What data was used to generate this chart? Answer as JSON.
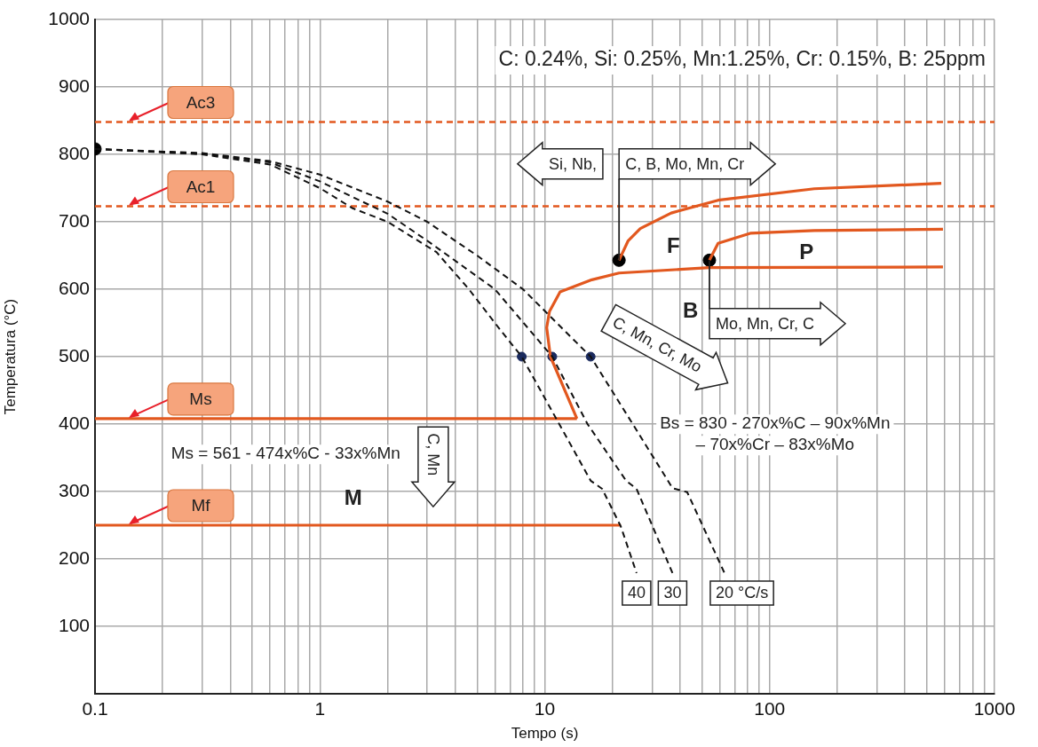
{
  "chart_data": {
    "type": "line",
    "xlabel": "Tempo (s)",
    "ylabel": "Temperatura (°C)",
    "log": "x",
    "grid": true,
    "legend": false,
    "xlim": [
      0.1,
      1000
    ],
    "ylim": [
      0,
      1000
    ],
    "xticks": [
      0.1,
      {
        "value": 0.2,
        "label": null
      },
      {
        "value": 0.3,
        "label": null
      },
      {
        "value": 0.4,
        "label": null
      },
      {
        "value": 0.5,
        "label": null
      },
      {
        "value": 0.6,
        "label": null
      },
      {
        "value": 0.7,
        "label": null
      },
      {
        "value": 0.8,
        "label": null
      },
      {
        "value": 0.9,
        "label": null
      },
      1,
      {
        "value": 2,
        "label": null
      },
      {
        "value": 3,
        "label": null
      },
      {
        "value": 4,
        "label": null
      },
      {
        "value": 5,
        "label": null
      },
      {
        "value": 6,
        "label": null
      },
      {
        "value": 7,
        "label": null
      },
      {
        "value": 8,
        "label": null
      },
      {
        "value": 9,
        "label": null
      },
      10,
      {
        "value": 20,
        "label": null
      },
      {
        "value": 30,
        "label": null
      },
      {
        "value": 40,
        "label": null
      },
      {
        "value": 50,
        "label": null
      },
      {
        "value": 60,
        "label": null
      },
      {
        "value": 70,
        "label": null
      },
      {
        "value": 80,
        "label": null
      },
      {
        "value": 90,
        "label": null
      },
      100,
      {
        "value": 200,
        "label": null
      },
      {
        "value": 300,
        "label": null
      },
      {
        "value": 400,
        "label": null
      },
      {
        "value": 500,
        "label": null
      },
      {
        "value": 600,
        "label": null
      },
      {
        "value": 700,
        "label": null
      },
      {
        "value": 800,
        "label": null
      },
      {
        "value": 900,
        "label": null
      },
      1000
    ],
    "yticks": [
      100,
      200,
      300,
      400,
      500,
      600,
      700,
      800,
      900,
      1000
    ],
    "series": [
      {
        "name": "40",
        "line_style": "dashed",
        "color": "#111111",
        "x": [
          0.1,
          0.3,
          0.6,
          1,
          1.4,
          2,
          3.3,
          4.6,
          6.4,
          7.9,
          11.6,
          16,
          18,
          21.8,
          25.6
        ],
        "values": [
          808,
          800,
          785,
          750,
          720,
          700,
          655,
          600,
          538,
          500,
          400,
          316,
          304,
          248,
          179
        ]
      },
      {
        "name": "30",
        "line_style": "dashed",
        "color": "#111111",
        "x": [
          0.1,
          0.3,
          0.6,
          1,
          2,
          3,
          6,
          10.8,
          15.5,
          23,
          25.6,
          37
        ],
        "values": [
          808,
          801,
          788,
          760,
          712,
          672,
          600,
          500,
          400,
          316,
          304,
          179
        ]
      },
      {
        "name": "20 °C/s",
        "line_style": "dashed",
        "color": "#111111",
        "x": [
          0.1,
          0.3,
          0.6,
          1,
          2,
          3,
          5,
          8,
          16,
          24,
          37,
          43,
          63
        ],
        "values": [
          808,
          802,
          790,
          770,
          730,
          700,
          650,
          600,
          500,
          406,
          305,
          299,
          179
        ]
      },
      {
        "line_style": "solid",
        "color": "#e2581f",
        "x": [
          21.4,
          23.5,
          26.6,
          36.5,
          59,
          158,
          580
        ],
        "values": [
          643,
          672,
          690,
          713,
          732,
          749,
          757
        ]
      },
      {
        "line_style": "solid",
        "color": "#e2581f",
        "x": [
          13.9,
          10.6,
          10.2,
          10.5,
          11.7,
          16.2,
          21.4,
          54,
          590
        ],
        "values": [
          408,
          500,
          543,
          567,
          596,
          614,
          624,
          632,
          633
        ]
      },
      {
        "line_style": "solid",
        "color": "#e2581f",
        "x": [
          54,
          59,
          82,
          158,
          590
        ],
        "values": [
          643,
          668,
          683,
          687,
          689
        ]
      },
      {
        "name": "Ms",
        "line_style": "solid",
        "color": "#e2581f",
        "x": [
          0.1,
          13.9
        ],
        "values": [
          408,
          408
        ]
      },
      {
        "name": "Mf",
        "line_style": "solid",
        "color": "#e2581f",
        "x": [
          0.1,
          21.8
        ],
        "values": [
          250,
          250
        ]
      },
      {
        "type": "scatter",
        "marker": "circle",
        "color": "#1a2a5e",
        "x": [
          7.9,
          10.8,
          16
        ],
        "values": [
          500,
          500,
          500
        ]
      },
      {
        "type": "scatter",
        "marker": "circle",
        "color": "#000000",
        "x": [
          0.1,
          21.4,
          54
        ],
        "values": [
          808,
          643,
          643
        ]
      }
    ],
    "ref_lines": [
      {
        "axis": "y",
        "value": 848,
        "label": "Ac3",
        "color": "#e2581f",
        "line_style": "dashed"
      },
      {
        "axis": "y",
        "value": 723,
        "label": "Ac1",
        "color": "#e2581f",
        "line_style": "dashed"
      }
    ],
    "annotations": [
      "C: 0.24%, Si: 0.25%, Mn:1.25%, Cr: 0.15%, B: 25ppm",
      "Si, Nb,",
      {
        "text": "C, B, Mo, Mn, Cr",
        "x": 21.4,
        "y": 643
      },
      {
        "text": "Mo, Mn, Cr, C",
        "x": 54,
        "y": 643
      },
      "C, Mn, Cr, Mo",
      "C, Mn",
      "F",
      "P",
      "B",
      "M",
      "Ms = 561 - 474x%C - 33x%Mn",
      "Bs = 830 - 270x%C – 90x%Mn\n– 70x%Cr – 83x%Mo"
    ]
  }
}
